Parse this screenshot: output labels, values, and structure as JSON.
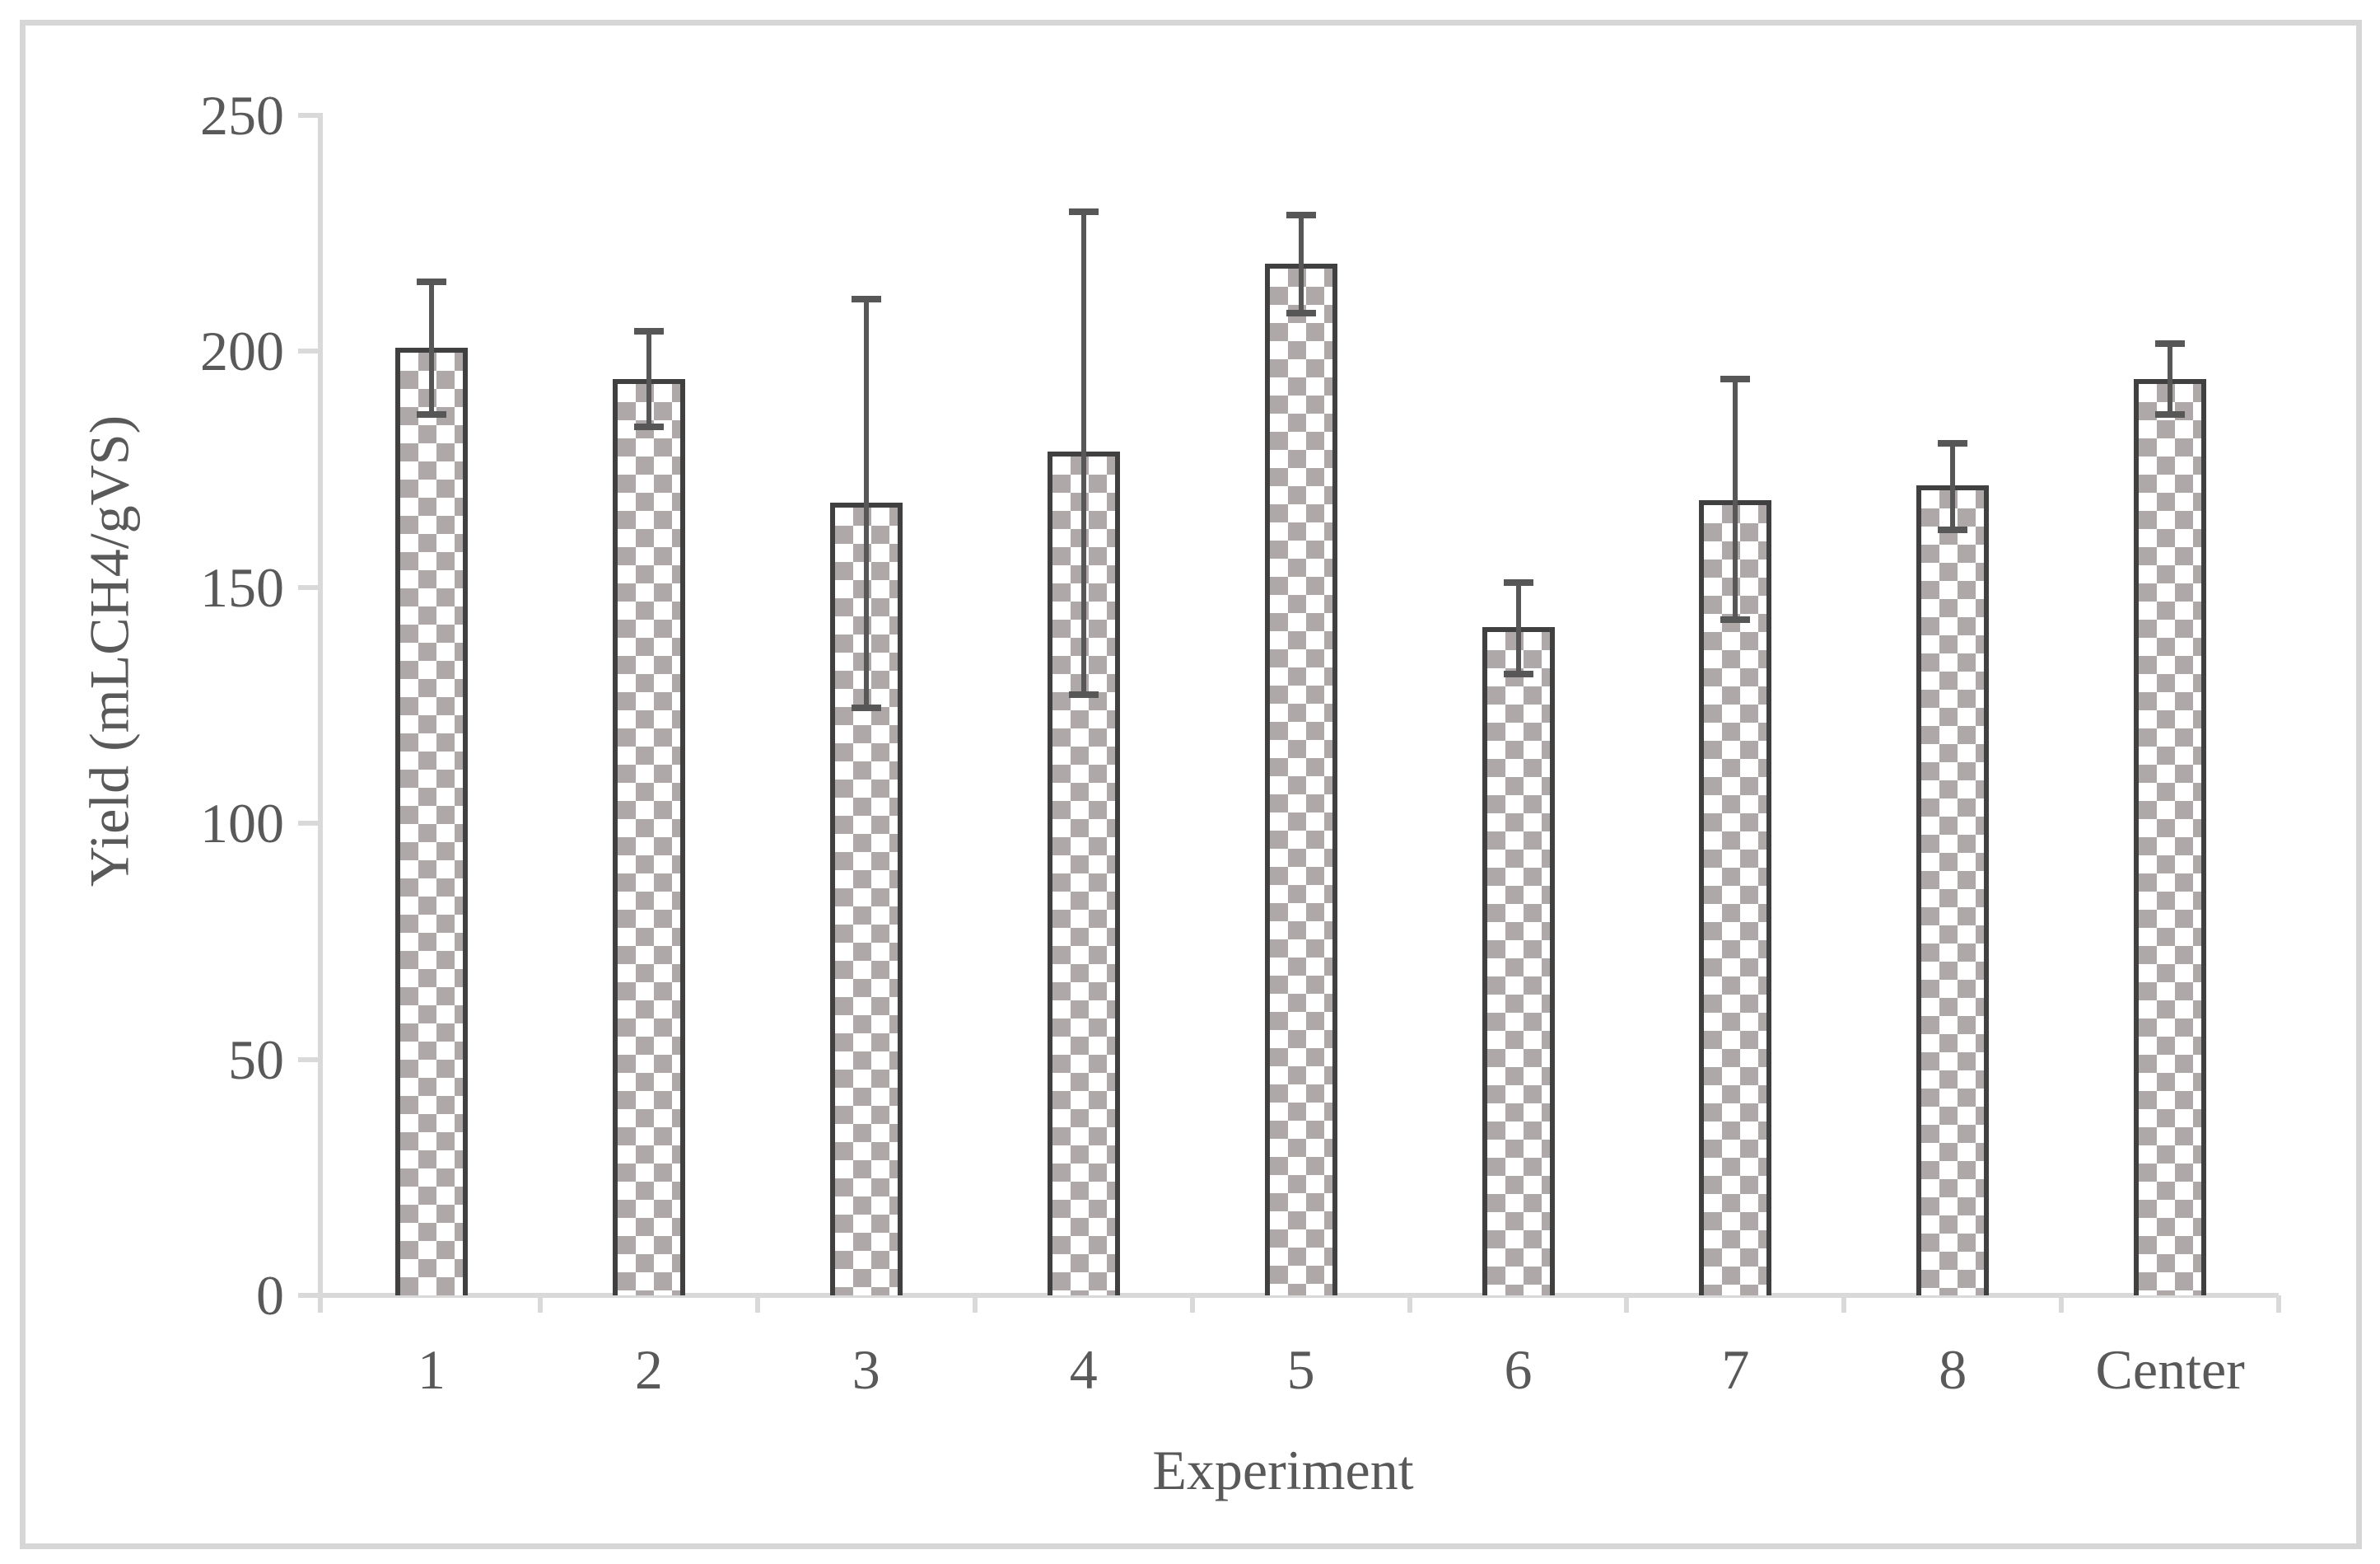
{
  "chart_data": {
    "type": "bar",
    "title": "",
    "categories": [
      "1",
      "2",
      "3",
      "4",
      "5",
      "6",
      "7",
      "8",
      "Center"
    ],
    "values": [
      200.8,
      194.1,
      168.0,
      178.8,
      218.5,
      141.5,
      168.5,
      171.7,
      194.1
    ],
    "error_upper": [
      214.8,
      204.3,
      211.0,
      229.5,
      228.8,
      151.0,
      194.1,
      180.5,
      201.6
    ],
    "error_lower": [
      186.6,
      184.0,
      124.4,
      127.2,
      208.1,
      131.6,
      143.2,
      162.2,
      186.6
    ],
    "xlabel": "Experiment",
    "ylabel": "Yield (mLCH4/gVS)",
    "yticks": [
      0,
      50,
      100,
      150,
      200,
      250
    ],
    "ylim": [
      0,
      250
    ],
    "grid": false,
    "legend": null,
    "bar_pattern": "checkerboard"
  },
  "styles": {
    "background": "#ffffff",
    "figure_border": "#d6d6d6",
    "axis_line": "#d9d9d9",
    "text": "#595959",
    "bar_outline": "#404040",
    "bar_fill_checker": "#afa8a8",
    "error_bar": "#575757"
  }
}
